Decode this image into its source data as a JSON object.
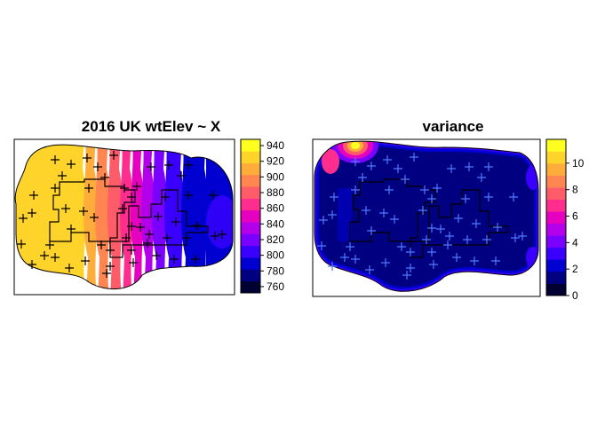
{
  "chart_data": [
    {
      "type": "heatmap",
      "title": "2016  UK wtElev ~ X",
      "colorbar": {
        "ticks": [
          760,
          780,
          800,
          820,
          840,
          860,
          880,
          900,
          920,
          940
        ],
        "range": [
          752,
          948
        ],
        "palette": [
          "#000033",
          "#000080",
          "#0000d0",
          "#3a00ff",
          "#7a00ff",
          "#b400ea",
          "#e600c0",
          "#ff2e8e",
          "#ff5c6a",
          "#ff8650",
          "#ffad3a",
          "#ffd42a",
          "#ffff20"
        ]
      },
      "point_marker": "+",
      "point_color": "#000000"
    },
    {
      "type": "heatmap",
      "title": "variance",
      "colorbar": {
        "ticks": [
          0,
          2,
          4,
          6,
          8,
          10
        ],
        "range": [
          0,
          11.8
        ],
        "palette": [
          "#000033",
          "#000080",
          "#0000d0",
          "#3a00ff",
          "#7a00ff",
          "#b400ea",
          "#e600c0",
          "#ff2e8e",
          "#ff5c6a",
          "#ff8650",
          "#ffad3a",
          "#ffd42a",
          "#ffff20"
        ]
      },
      "point_marker": "+",
      "point_color": "#4d79ff"
    }
  ]
}
